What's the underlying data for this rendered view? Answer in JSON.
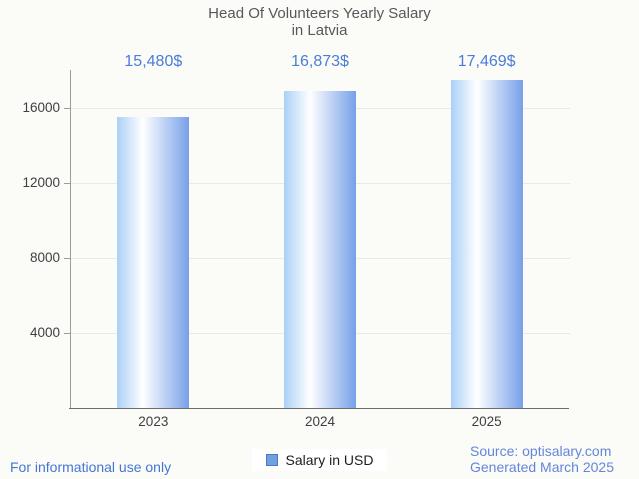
{
  "title": {
    "text": "Head Of Volunteers Yearly Salary\nin Latvia"
  },
  "chart_data": {
    "type": "bar",
    "title": "Head Of Volunteers Yearly Salary in Latvia",
    "categories": [
      "2023",
      "2024",
      "2025"
    ],
    "series": [
      {
        "name": "Salary in USD",
        "values": [
          15480,
          16873,
          17469
        ],
        "value_labels": [
          "15,480$",
          "16,873$",
          "17,469$"
        ]
      }
    ],
    "xlabel": "",
    "ylabel": "",
    "ylim": [
      0,
      18000
    ],
    "yticks": [
      4000,
      8000,
      12000,
      16000
    ],
    "grid": true,
    "legend_position": "bottom"
  },
  "legend": {
    "label": "Salary in USD"
  },
  "footer": {
    "disclaimer": "For informational use only",
    "source": "Source: optisalary.com",
    "generated": "Generated March 2025"
  },
  "colors": {
    "accent_blue": "#4a7dd6",
    "bar_gradient_left": "#abd0f7",
    "bar_gradient_mid": "#ffffff",
    "bar_gradient_right": "#77a0e9",
    "legend_swatch_fill": "#6fa0e0",
    "legend_swatch_border": "#4c7cc0",
    "footer_blue": "#4576d4",
    "source_blue": "#6386dc"
  }
}
